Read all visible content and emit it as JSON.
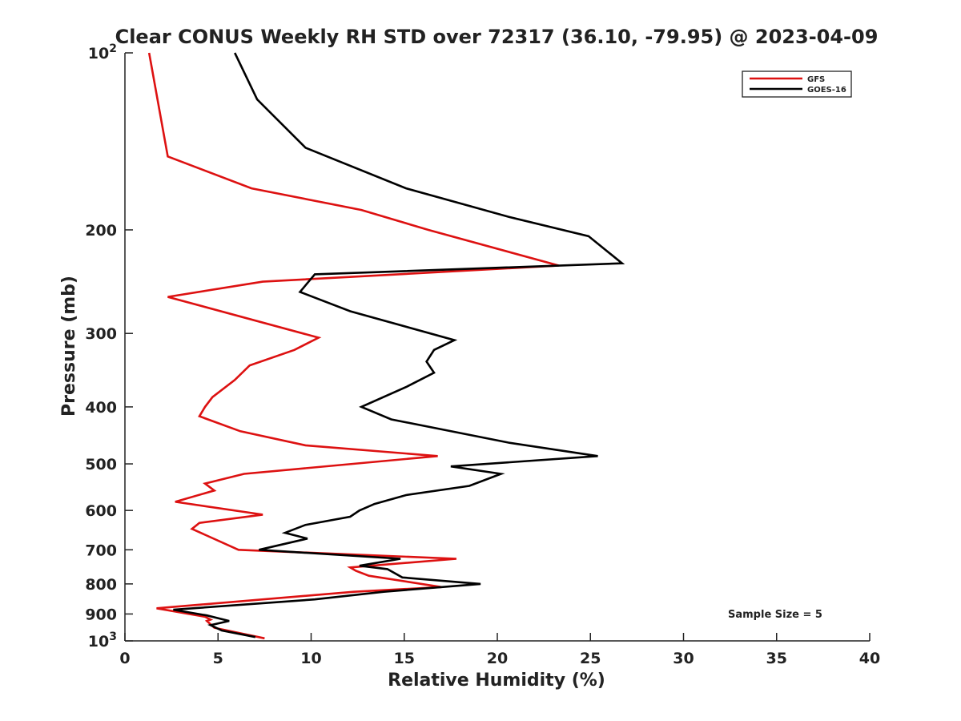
{
  "chart_data": {
    "type": "line",
    "title": "Clear CONUS Weekly RH STD over 72317 (36.10, -79.95) @ 2023-04-09",
    "xlabel": "Relative Humidity (%)",
    "ylabel": "Pressure (mb)",
    "xlim": [
      0,
      40
    ],
    "ylim": [
      100,
      1000
    ],
    "y_scale": "log",
    "y_reversed": true,
    "grid": false,
    "legend_position": "top-right",
    "x_ticks": [
      "0",
      "5",
      "10",
      "15",
      "20",
      "25",
      "30",
      "35",
      "40"
    ],
    "y_ticks": [
      {
        "value": 100,
        "base": "10",
        "exp": "2"
      },
      {
        "value": 200,
        "label": "200"
      },
      {
        "value": 300,
        "label": "300"
      },
      {
        "value": 400,
        "label": "400"
      },
      {
        "value": 500,
        "label": "500"
      },
      {
        "value": 600,
        "label": "600"
      },
      {
        "value": 700,
        "label": "700"
      },
      {
        "value": 800,
        "label": "800"
      },
      {
        "value": 900,
        "label": "900"
      },
      {
        "value": 1000,
        "base": "10",
        "exp": "3"
      }
    ],
    "series": [
      {
        "name": "GFS",
        "color": "#dd1111",
        "x": [
          1.3,
          2.3,
          6.8,
          12.7,
          16.3,
          23.3,
          7.4,
          2.3,
          10.4,
          9.1,
          6.7,
          5.9,
          4.7,
          4.3,
          4.0,
          6.2,
          9.7,
          16.8,
          6.4,
          4.3,
          4.8,
          2.7,
          7.4,
          4.0,
          3.6,
          6.1,
          17.8,
          12.1,
          12.4,
          13.1,
          17.0,
          12.3,
          1.7,
          4.3,
          4.6,
          4.4,
          4.8,
          7.5
        ],
        "y": [
          100,
          150,
          170,
          185,
          200,
          230,
          245,
          260,
          305,
          320,
          340,
          360,
          385,
          400,
          415,
          440,
          465,
          485,
          520,
          540,
          555,
          580,
          610,
          630,
          645,
          700,
          725,
          750,
          760,
          775,
          810,
          825,
          880,
          910,
          920,
          925,
          950,
          990
        ]
      },
      {
        "name": "GOES-16",
        "color": "#000000",
        "x": [
          5.9,
          7.1,
          9.7,
          15.1,
          20.6,
          24.9,
          26.7,
          10.2,
          9.4,
          12.1,
          17.7,
          16.6,
          16.2,
          16.6,
          15.1,
          12.7,
          14.3,
          20.6,
          25.4,
          17.5,
          20.2,
          18.5,
          15.1,
          13.4,
          12.6,
          12.1,
          9.7,
          8.6,
          9.8,
          7.2,
          14.8,
          12.6,
          14.1,
          14.9,
          19.1,
          13.9,
          10.2,
          2.6,
          4.4,
          5.6,
          4.6,
          5.2,
          7.0
        ],
        "y": [
          100,
          120,
          145,
          170,
          190,
          205,
          228,
          238,
          255,
          275,
          308,
          320,
          335,
          350,
          370,
          400,
          420,
          460,
          485,
          505,
          520,
          545,
          565,
          585,
          600,
          615,
          635,
          655,
          670,
          700,
          725,
          745,
          755,
          780,
          800,
          825,
          850,
          885,
          905,
          925,
          940,
          960,
          985
        ]
      }
    ],
    "annotation": "Sample Size = 5"
  }
}
